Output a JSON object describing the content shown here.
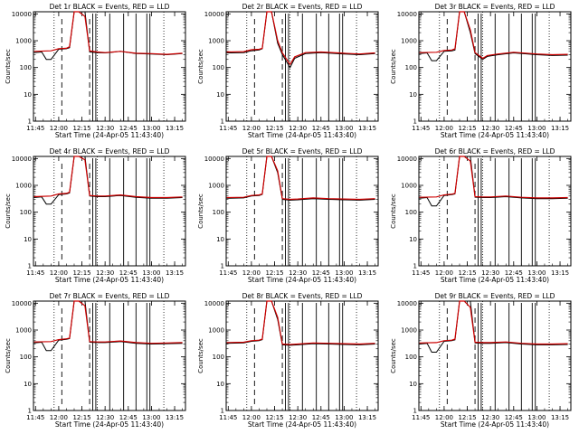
{
  "common": {
    "xlabel": "Start Time (24-Apr-05 11:43:40)",
    "ylabel": "Counts/sec",
    "xticks": [
      "11:45",
      "12:00",
      "12:15",
      "12:30",
      "12:45",
      "13:00",
      "13:15"
    ],
    "yticks": [
      "1",
      "10",
      "100",
      "1000",
      "10000"
    ],
    "colors": {
      "events": "#000000",
      "lld": "#cc0000"
    }
  },
  "chart_data": [
    {
      "type": "line",
      "title": "Det 1r BLACK = Events, RED = LLD",
      "xlabel": "Start Time (24-Apr-05 11:43:40)",
      "ylabel": "Counts/sec",
      "yscale": "log",
      "ylim": [
        1,
        12000
      ],
      "xlim": [
        "11:43:40",
        "13:22:00"
      ],
      "series": [
        {
          "name": "BLACK = Events",
          "color": "#000000",
          "x": [
            "11:44",
            "11:49",
            "11:52",
            "11:55",
            "12:00",
            "12:05",
            "12:07",
            "12:10",
            "12:13",
            "12:17",
            "12:20",
            "12:25",
            "12:30",
            "12:40",
            "12:50",
            "13:00",
            "13:10",
            "13:20"
          ],
          "y": [
            360,
            380,
            200,
            200,
            480,
            500,
            550,
            12000,
            12000,
            12000,
            380,
            360,
            350,
            400,
            330,
            320,
            300,
            330
          ]
        },
        {
          "name": "RED = LLD",
          "color": "#cc0000",
          "x": [
            "11:44",
            "11:55",
            "12:00",
            "12:05",
            "12:07",
            "12:10",
            "12:13",
            "12:17",
            "12:20",
            "12:25",
            "12:30",
            "12:40",
            "12:50",
            "13:00",
            "13:10",
            "13:20"
          ],
          "y": [
            400,
            420,
            500,
            520,
            600,
            12000,
            12000,
            8000,
            420,
            380,
            360,
            400,
            340,
            330,
            310,
            340
          ]
        }
      ]
    },
    {
      "type": "line",
      "title": "Det 2r BLACK = Events, RED = LLD",
      "xlabel": "Start Time (24-Apr-05 11:43:40)",
      "ylabel": "Counts/sec",
      "yscale": "log",
      "ylim": [
        1,
        12000
      ],
      "xlim": [
        "11:43:40",
        "13:22:00"
      ],
      "series": [
        {
          "name": "BLACK = Events",
          "color": "#000000",
          "x": [
            "11:44",
            "11:55",
            "12:00",
            "12:05",
            "12:07",
            "12:10",
            "12:13",
            "12:17",
            "12:20",
            "12:25",
            "12:28",
            "12:35",
            "12:45",
            "13:00",
            "13:10",
            "13:20"
          ],
          "y": [
            350,
            360,
            420,
            450,
            500,
            12000,
            12000,
            800,
            300,
            100,
            220,
            330,
            360,
            320,
            300,
            330
          ]
        },
        {
          "name": "RED = LLD",
          "color": "#cc0000",
          "x": [
            "11:44",
            "11:55",
            "12:00",
            "12:05",
            "12:07",
            "12:10",
            "12:13",
            "12:17",
            "12:20",
            "12:25",
            "12:28",
            "12:35",
            "12:45",
            "13:00",
            "13:10",
            "13:20"
          ],
          "y": [
            380,
            390,
            460,
            480,
            520,
            12000,
            12000,
            1000,
            350,
            130,
            250,
            360,
            380,
            340,
            320,
            350
          ]
        }
      ]
    },
    {
      "type": "line",
      "title": "Det 3r BLACK = Events, RED = LLD",
      "xlabel": "Start Time (24-Apr-05 11:43:40)",
      "ylabel": "Counts/sec",
      "yscale": "log",
      "ylim": [
        1,
        12000
      ],
      "xlim": [
        "11:43:40",
        "13:22:00"
      ],
      "series": [
        {
          "name": "BLACK = Events",
          "color": "#000000",
          "x": [
            "11:44",
            "11:49",
            "11:52",
            "11:55",
            "12:00",
            "12:05",
            "12:07",
            "12:10",
            "12:13",
            "12:17",
            "12:20",
            "12:25",
            "12:28",
            "12:35",
            "12:45",
            "13:00",
            "13:10",
            "13:20"
          ],
          "y": [
            330,
            350,
            180,
            180,
            400,
            420,
            450,
            12000,
            12000,
            2000,
            330,
            200,
            260,
            300,
            350,
            300,
            280,
            290
          ]
        },
        {
          "name": "RED = LLD",
          "color": "#cc0000",
          "x": [
            "11:44",
            "11:55",
            "12:00",
            "12:05",
            "12:07",
            "12:10",
            "12:13",
            "12:17",
            "12:20",
            "12:25",
            "12:28",
            "12:35",
            "12:45",
            "13:00",
            "13:10",
            "13:20"
          ],
          "y": [
            360,
            370,
            430,
            450,
            500,
            12000,
            12000,
            2500,
            360,
            220,
            280,
            320,
            370,
            320,
            300,
            310
          ]
        }
      ]
    },
    {
      "type": "line",
      "title": "Det 4r BLACK = Events, RED = LLD",
      "xlabel": "Start Time (24-Apr-05 11:43:40)",
      "ylabel": "Counts/sec",
      "yscale": "log",
      "ylim": [
        1,
        12000
      ],
      "xlim": [
        "11:43:40",
        "13:22:00"
      ],
      "series": [
        {
          "name": "BLACK = Events",
          "color": "#000000",
          "x": [
            "11:44",
            "11:49",
            "11:52",
            "11:55",
            "12:00",
            "12:05",
            "12:07",
            "12:10",
            "12:13",
            "12:17",
            "12:20",
            "12:25",
            "12:30",
            "12:40",
            "12:50",
            "13:00",
            "13:10",
            "13:20"
          ],
          "y": [
            350,
            370,
            200,
            200,
            450,
            480,
            520,
            12000,
            12000,
            12000,
            400,
            380,
            380,
            420,
            360,
            330,
            330,
            350
          ]
        },
        {
          "name": "RED = LLD",
          "color": "#cc0000",
          "x": [
            "11:44",
            "11:55",
            "12:00",
            "12:05",
            "12:07",
            "12:10",
            "12:13",
            "12:17",
            "12:20",
            "12:25",
            "12:30",
            "12:40",
            "12:50",
            "13:00",
            "13:10",
            "13:20"
          ],
          "y": [
            380,
            400,
            480,
            500,
            560,
            12000,
            12000,
            9000,
            420,
            400,
            400,
            440,
            380,
            350,
            350,
            370
          ]
        }
      ]
    },
    {
      "type": "line",
      "title": "Det 5r BLACK = Events, RED = LLD",
      "xlabel": "Start Time (24-Apr-05 11:43:40)",
      "ylabel": "Counts/sec",
      "yscale": "log",
      "ylim": [
        1,
        12000
      ],
      "xlim": [
        "11:43:40",
        "13:22:00"
      ],
      "series": [
        {
          "name": "BLACK = Events",
          "color": "#000000",
          "x": [
            "11:44",
            "11:55",
            "12:00",
            "12:05",
            "12:07",
            "12:10",
            "12:13",
            "12:17",
            "12:20",
            "12:25",
            "12:30",
            "12:40",
            "12:50",
            "13:00",
            "13:10",
            "13:20"
          ],
          "y": [
            330,
            340,
            400,
            420,
            460,
            12000,
            12000,
            3000,
            300,
            280,
            290,
            320,
            300,
            290,
            280,
            300
          ]
        },
        {
          "name": "RED = LLD",
          "color": "#cc0000",
          "x": [
            "11:44",
            "11:55",
            "12:00",
            "12:05",
            "12:07",
            "12:10",
            "12:13",
            "12:17",
            "12:20",
            "12:25",
            "12:30",
            "12:40",
            "12:50",
            "13:00",
            "13:10",
            "13:20"
          ],
          "y": [
            350,
            360,
            420,
            440,
            480,
            12000,
            12000,
            3500,
            320,
            300,
            310,
            340,
            320,
            310,
            300,
            320
          ]
        }
      ]
    },
    {
      "type": "line",
      "title": "Det 6r BLACK = Events, RED = LLD",
      "xlabel": "Start Time (24-Apr-05 11:43:40)",
      "ylabel": "Counts/sec",
      "yscale": "log",
      "ylim": [
        1,
        12000
      ],
      "xlim": [
        "11:43:40",
        "13:22:00"
      ],
      "series": [
        {
          "name": "BLACK = Events",
          "color": "#000000",
          "x": [
            "11:44",
            "11:49",
            "11:52",
            "11:55",
            "12:00",
            "12:05",
            "12:07",
            "12:10",
            "12:13",
            "12:17",
            "12:20",
            "12:25",
            "12:30",
            "12:40",
            "12:50",
            "13:00",
            "13:10",
            "13:20"
          ],
          "y": [
            330,
            350,
            170,
            170,
            420,
            450,
            480,
            12000,
            12000,
            12000,
            360,
            350,
            350,
            380,
            340,
            320,
            320,
            330
          ]
        },
        {
          "name": "RED = LLD",
          "color": "#cc0000",
          "x": [
            "11:44",
            "11:55",
            "12:00",
            "12:05",
            "12:07",
            "12:10",
            "12:13",
            "12:17",
            "12:20",
            "12:25",
            "12:30",
            "12:40",
            "12:50",
            "13:00",
            "13:10",
            "13:20"
          ],
          "y": [
            360,
            370,
            440,
            470,
            500,
            12000,
            12000,
            8000,
            380,
            370,
            370,
            400,
            360,
            340,
            340,
            350
          ]
        }
      ]
    },
    {
      "type": "line",
      "title": "Det 7r BLACK = Events, RED = LLD",
      "xlabel": "Start Time (24-Apr-05 11:43:40)",
      "ylabel": "Counts/sec",
      "yscale": "log",
      "ylim": [
        1,
        12000
      ],
      "xlim": [
        "11:43:40",
        "13:22:00"
      ],
      "series": [
        {
          "name": "BLACK = Events",
          "color": "#000000",
          "x": [
            "11:44",
            "11:49",
            "11:52",
            "11:55",
            "12:00",
            "12:05",
            "12:07",
            "12:10",
            "12:13",
            "12:17",
            "12:20",
            "12:25",
            "12:30",
            "12:40",
            "12:50",
            "13:00",
            "13:10",
            "13:20"
          ],
          "y": [
            330,
            350,
            170,
            170,
            420,
            450,
            480,
            12000,
            12000,
            12000,
            350,
            340,
            340,
            370,
            320,
            300,
            310,
            320
          ]
        },
        {
          "name": "RED = LLD",
          "color": "#cc0000",
          "x": [
            "11:44",
            "11:55",
            "12:00",
            "12:05",
            "12:07",
            "12:10",
            "12:13",
            "12:17",
            "12:20",
            "12:25",
            "12:30",
            "12:40",
            "12:50",
            "13:00",
            "13:10",
            "13:20"
          ],
          "y": [
            360,
            370,
            440,
            470,
            500,
            12000,
            12000,
            8000,
            370,
            360,
            360,
            390,
            340,
            320,
            330,
            340
          ]
        }
      ]
    },
    {
      "type": "line",
      "title": "Det 8r BLACK = Events, RED = LLD",
      "xlabel": "Start Time (24-Apr-05 11:43:40)",
      "ylabel": "Counts/sec",
      "yscale": "log",
      "ylim": [
        1,
        12000
      ],
      "xlim": [
        "11:43:40",
        "13:22:00"
      ],
      "series": [
        {
          "name": "BLACK = Events",
          "color": "#000000",
          "x": [
            "11:44",
            "11:55",
            "12:00",
            "12:05",
            "12:07",
            "12:10",
            "12:13",
            "12:17",
            "12:20",
            "12:25",
            "12:30",
            "12:40",
            "12:50",
            "13:00",
            "13:10",
            "13:20"
          ],
          "y": [
            320,
            330,
            380,
            400,
            440,
            12000,
            12000,
            2500,
            280,
            270,
            280,
            310,
            300,
            290,
            280,
            300
          ]
        },
        {
          "name": "RED = LLD",
          "color": "#cc0000",
          "x": [
            "11:44",
            "11:55",
            "12:00",
            "12:05",
            "12:07",
            "12:10",
            "12:13",
            "12:17",
            "12:20",
            "12:25",
            "12:30",
            "12:40",
            "12:50",
            "13:00",
            "13:10",
            "13:20"
          ],
          "y": [
            340,
            350,
            400,
            420,
            460,
            12000,
            12000,
            3000,
            300,
            290,
            300,
            330,
            320,
            310,
            300,
            320
          ]
        }
      ]
    },
    {
      "type": "line",
      "title": "Det 9r BLACK = Events, RED = LLD",
      "xlabel": "Start Time (24-Apr-05 11:43:40)",
      "ylabel": "Counts/sec",
      "yscale": "log",
      "ylim": [
        1,
        12000
      ],
      "xlim": [
        "11:43:40",
        "13:22:00"
      ],
      "series": [
        {
          "name": "BLACK = Events",
          "color": "#000000",
          "x": [
            "11:44",
            "11:49",
            "11:52",
            "11:55",
            "12:00",
            "12:05",
            "12:07",
            "12:10",
            "12:13",
            "12:17",
            "12:20",
            "12:25",
            "12:30",
            "12:40",
            "12:50",
            "13:00",
            "13:10",
            "13:20"
          ],
          "y": [
            300,
            320,
            150,
            150,
            380,
            400,
            430,
            12000,
            12000,
            12000,
            330,
            320,
            320,
            340,
            300,
            280,
            280,
            290
          ]
        },
        {
          "name": "RED = LLD",
          "color": "#cc0000",
          "x": [
            "11:44",
            "11:55",
            "12:00",
            "12:05",
            "12:07",
            "12:10",
            "12:13",
            "12:17",
            "12:20",
            "12:25",
            "12:30",
            "12:40",
            "12:50",
            "13:00",
            "13:10",
            "13:20"
          ],
          "y": [
            330,
            340,
            400,
            420,
            460,
            12000,
            12000,
            7000,
            350,
            340,
            340,
            360,
            320,
            300,
            300,
            310
          ]
        }
      ]
    }
  ]
}
